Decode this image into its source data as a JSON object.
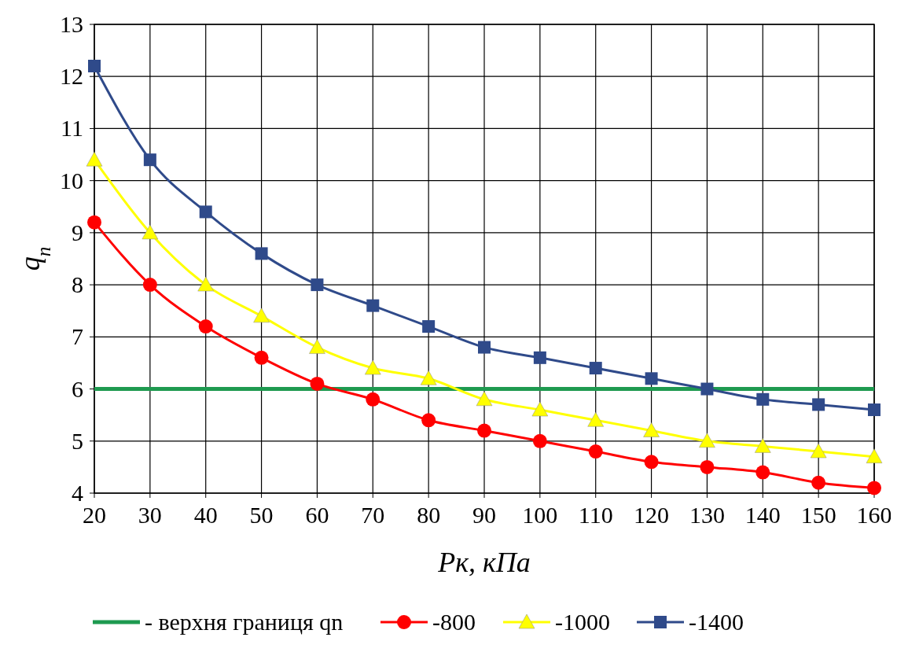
{
  "chart_data": {
    "type": "line",
    "xlabel": "Рк,  кПа",
    "ylabel": "q$_{n}$",
    "x": [
      20,
      30,
      40,
      50,
      60,
      70,
      80,
      90,
      100,
      110,
      120,
      130,
      140,
      150,
      160
    ],
    "xlim": [
      20,
      160
    ],
    "xticks": [
      20,
      30,
      40,
      50,
      60,
      70,
      80,
      90,
      100,
      110,
      120,
      130,
      140,
      150,
      160
    ],
    "ylim": [
      4,
      13
    ],
    "yticks": [
      4,
      5,
      6,
      7,
      8,
      9,
      10,
      11,
      12,
      13
    ],
    "grid": true,
    "legend": "bottom",
    "series": [
      {
        "name": "- верхня границя qn",
        "color": "#1e9a50",
        "marker": "none",
        "values": [
          6,
          6,
          6,
          6,
          6,
          6,
          6,
          6,
          6,
          6,
          6,
          6,
          6,
          6,
          6
        ]
      },
      {
        "name": "-800",
        "color": "#ff0000",
        "marker": "circle",
        "values": [
          9.2,
          8.0,
          7.2,
          6.6,
          6.1,
          5.8,
          5.4,
          5.2,
          5.0,
          4.8,
          4.6,
          4.5,
          4.4,
          4.2,
          4.1
        ]
      },
      {
        "name": "-1000",
        "color": "#ffff00",
        "marker": "triangle",
        "values": [
          10.4,
          9.0,
          8.0,
          7.4,
          6.8,
          6.4,
          6.2,
          5.8,
          5.6,
          5.4,
          5.2,
          5.0,
          4.9,
          4.8,
          4.7
        ]
      },
      {
        "name": "-1400",
        "color": "#2f4a8a",
        "marker": "square",
        "values": [
          12.2,
          10.4,
          9.4,
          8.6,
          8.0,
          7.6,
          7.2,
          6.8,
          6.6,
          6.4,
          6.2,
          6.0,
          5.8,
          5.7,
          5.6
        ]
      }
    ]
  }
}
